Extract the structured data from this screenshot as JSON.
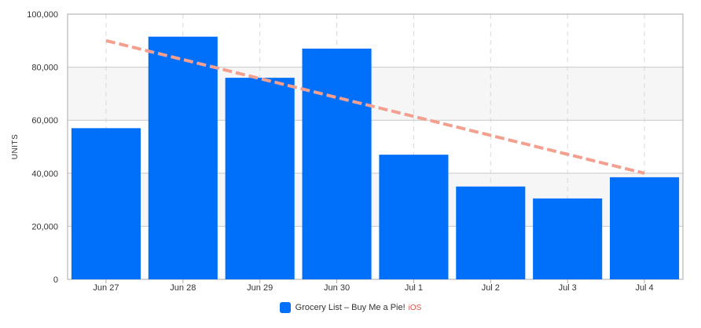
{
  "chart_data": {
    "type": "bar",
    "categories": [
      "Jun 27",
      "Jun 28",
      "Jun 29",
      "Jun 30",
      "Jul 1",
      "Jul 2",
      "Jul 3",
      "Jul 4"
    ],
    "series": [
      {
        "name": "Grocery List - Buy Me a Pie!",
        "platform": "iOS",
        "values": [
          57000,
          91500,
          76000,
          87000,
          47000,
          35000,
          30500,
          38500
        ]
      }
    ],
    "trendline": {
      "style": "dashed",
      "start": 90000,
      "end": 40000
    },
    "ylabel": "UNITS",
    "ylim": [
      0,
      100000
    ],
    "yticks": [
      0,
      20000,
      40000,
      60000,
      80000,
      100000
    ],
    "ytick_labels": [
      "0",
      "20,000",
      "40,000",
      "60,000",
      "80,000",
      "100,000"
    ],
    "grid": true,
    "legend_position": "bottom-center"
  },
  "legend": {
    "label": "Grocery List – Buy Me a Pie!",
    "platform": "iOS"
  },
  "colors": {
    "bar": "#0070fb",
    "trend": "#f4a090",
    "band_shaded": "#f6f6f6",
    "grid_h": "#c8c8c8",
    "grid_v": "#d9d9d9",
    "axis": "#aaaaaa",
    "platform_text": "#d9534f"
  }
}
